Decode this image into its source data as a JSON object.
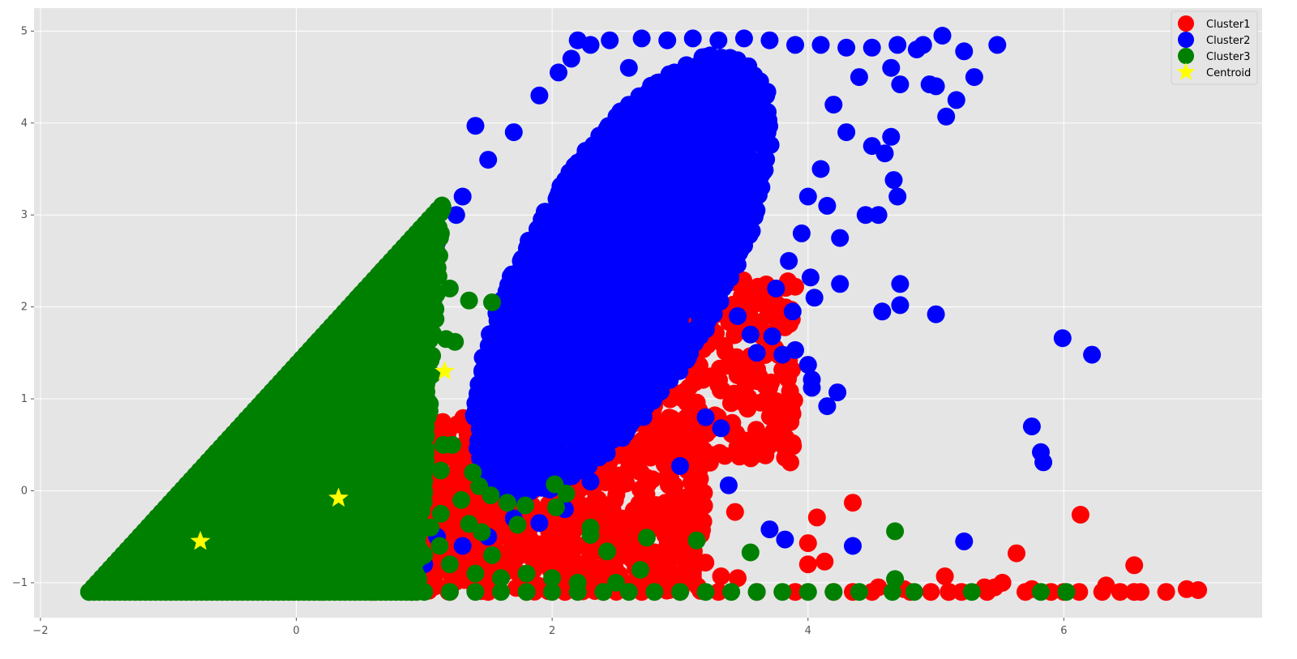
{
  "chart_data": {
    "type": "scatter",
    "grid": true,
    "legend_position": "top-right",
    "xlim": [
      -2.05,
      7.55
    ],
    "ylim": [
      -1.38,
      5.25
    ],
    "x_ticks": [
      -2,
      0,
      2,
      4,
      6
    ],
    "y_ticks": [
      -1,
      0,
      1,
      2,
      3,
      4,
      5
    ],
    "x_tick_labels": [
      "−2",
      "0",
      "2",
      "4",
      "6"
    ],
    "y_tick_labels": [
      "−1",
      "0",
      "1",
      "2",
      "3",
      "4",
      "5"
    ],
    "colors": {
      "plot_bg": "#e5e5e5",
      "grid": "#ffffff"
    },
    "series": [
      {
        "name": "Cluster1",
        "color": "#ff0000",
        "marker": "circle",
        "regions": [
          {
            "x": [
              0.6,
              3.2
            ],
            "y": [
              -1.1,
              0.8
            ],
            "count": 900
          },
          {
            "x": [
              2.2,
              3.9
            ],
            "y": [
              0.3,
              2.3
            ],
            "count": 350
          }
        ],
        "points": [
          [
            0.6,
            -1.1
          ],
          [
            0.9,
            -1.1
          ],
          [
            1.2,
            -1.1
          ],
          [
            1.5,
            -1.1
          ],
          [
            1.8,
            -1.1
          ],
          [
            2.1,
            -1.1
          ],
          [
            2.4,
            -1.1
          ],
          [
            2.7,
            -1.1
          ],
          [
            3.0,
            -1.1
          ],
          [
            3.3,
            -1.1
          ],
          [
            3.6,
            -1.1
          ],
          [
            3.9,
            -1.1
          ],
          [
            4.2,
            -1.1
          ],
          [
            4.5,
            -1.1
          ],
          [
            4.8,
            -1.1
          ],
          [
            5.1,
            -1.1
          ],
          [
            5.4,
            -1.1
          ],
          [
            5.7,
            -1.1
          ],
          [
            6.0,
            -1.1
          ],
          [
            6.3,
            -1.1
          ],
          [
            6.6,
            -1.1
          ],
          [
            6.8,
            -1.1
          ],
          [
            6.96,
            -1.07
          ],
          [
            7.05,
            -1.08
          ],
          [
            6.55,
            -1.1
          ],
          [
            6.44,
            -1.1
          ],
          [
            6.33,
            -1.03
          ],
          [
            6.12,
            -1.1
          ],
          [
            5.9,
            -1.1
          ],
          [
            5.75,
            -1.07
          ],
          [
            5.52,
            -1.0
          ],
          [
            5.46,
            -1.05
          ],
          [
            5.38,
            -1.05
          ],
          [
            5.2,
            -1.1
          ],
          [
            5.1,
            -1.1
          ],
          [
            5.07,
            -0.93
          ],
          [
            4.96,
            -1.1
          ],
          [
            4.75,
            -1.07
          ],
          [
            4.55,
            -1.05
          ],
          [
            4.35,
            -1.1
          ],
          [
            6.13,
            -0.26
          ],
          [
            5.63,
            -0.68
          ],
          [
            6.55,
            -0.81
          ],
          [
            4.35,
            -0.13
          ],
          [
            4.07,
            -0.29
          ],
          [
            3.43,
            -0.23
          ],
          [
            4.0,
            -0.57
          ],
          [
            4.13,
            -0.77
          ],
          [
            4.0,
            -0.8
          ],
          [
            3.15,
            0.23
          ],
          [
            3.35,
            0.38
          ],
          [
            3.8,
            0.5
          ],
          [
            3.82,
            0.36
          ],
          [
            3.12,
            -0.78
          ],
          [
            2.95,
            -0.57
          ],
          [
            3.05,
            -0.57
          ],
          [
            2.93,
            -0.47
          ],
          [
            2.73,
            -0.53
          ],
          [
            3.32,
            -0.93
          ],
          [
            3.45,
            -0.95
          ],
          [
            3.1,
            -0.94
          ],
          [
            2.68,
            -0.14
          ],
          [
            2.5,
            -0.43
          ],
          [
            2.3,
            -0.7
          ],
          [
            3.3,
            1.15
          ],
          [
            3.9,
            2.22
          ]
        ]
      },
      {
        "name": "Cluster2",
        "color": "#0000ff",
        "marker": "circle",
        "regions": [
          {
            "x": [
              0.8,
              4.3
            ],
            "y": [
              -0.4,
              4.9
            ],
            "count": 2400
          }
        ],
        "points": [
          [
            5.05,
            4.95
          ],
          [
            5.48,
            4.85
          ],
          [
            5.22,
            4.78
          ],
          [
            5.3,
            4.5
          ],
          [
            5.16,
            4.25
          ],
          [
            5.08,
            4.07
          ],
          [
            4.95,
            4.42
          ],
          [
            5.0,
            4.4
          ],
          [
            4.72,
            4.42
          ],
          [
            4.65,
            3.85
          ],
          [
            4.6,
            3.67
          ],
          [
            4.5,
            3.75
          ],
          [
            4.67,
            3.38
          ],
          [
            4.7,
            3.2
          ],
          [
            4.45,
            3.0
          ],
          [
            4.55,
            3.0
          ],
          [
            4.25,
            2.75
          ],
          [
            4.25,
            2.25
          ],
          [
            4.72,
            2.25
          ],
          [
            4.72,
            2.02
          ],
          [
            4.58,
            1.95
          ],
          [
            5.0,
            1.92
          ],
          [
            4.05,
            2.1
          ],
          [
            4.02,
            2.32
          ],
          [
            3.88,
            1.95
          ],
          [
            3.9,
            1.53
          ],
          [
            3.72,
            1.68
          ],
          [
            3.8,
            1.48
          ],
          [
            4.0,
            1.37
          ],
          [
            4.03,
            1.21
          ],
          [
            4.03,
            1.12
          ],
          [
            4.23,
            1.07
          ],
          [
            4.15,
            0.92
          ],
          [
            3.32,
            0.68
          ],
          [
            3.2,
            0.8
          ],
          [
            3.38,
            0.06
          ],
          [
            3.0,
            0.27
          ],
          [
            3.7,
            -0.42
          ],
          [
            3.82,
            -0.53
          ],
          [
            4.35,
            -0.6
          ],
          [
            5.22,
            -0.55
          ],
          [
            5.75,
            0.7
          ],
          [
            5.82,
            0.42
          ],
          [
            5.84,
            0.31
          ],
          [
            5.99,
            1.66
          ],
          [
            6.22,
            1.48
          ],
          [
            1.4,
            3.97
          ],
          [
            3.6,
            1.5
          ],
          [
            3.55,
            1.7
          ],
          [
            3.45,
            1.9
          ],
          [
            2.2,
            4.9
          ],
          [
            2.3,
            4.85
          ],
          [
            2.45,
            4.9
          ],
          [
            2.7,
            4.92
          ],
          [
            2.9,
            4.9
          ],
          [
            3.1,
            4.92
          ],
          [
            3.3,
            4.9
          ],
          [
            3.5,
            4.92
          ],
          [
            3.7,
            4.9
          ],
          [
            3.9,
            4.85
          ],
          [
            4.1,
            4.85
          ],
          [
            4.3,
            4.82
          ],
          [
            4.5,
            4.82
          ],
          [
            4.7,
            4.85
          ],
          [
            4.9,
            4.85
          ],
          [
            4.85,
            4.8
          ],
          [
            4.65,
            4.6
          ],
          [
            4.4,
            4.5
          ],
          [
            4.2,
            4.2
          ],
          [
            4.3,
            3.9
          ],
          [
            4.1,
            3.5
          ],
          [
            4.0,
            3.2
          ],
          [
            4.15,
            3.1
          ],
          [
            3.95,
            2.8
          ],
          [
            3.85,
            2.5
          ],
          [
            3.75,
            2.2
          ],
          [
            1.25,
            3.0
          ],
          [
            1.1,
            2.7
          ],
          [
            1.3,
            3.2
          ],
          [
            1.5,
            3.6
          ],
          [
            1.7,
            3.9
          ],
          [
            1.9,
            4.3
          ],
          [
            2.05,
            4.55
          ],
          [
            2.15,
            4.7
          ],
          [
            2.6,
            4.6
          ],
          [
            2.3,
            0.1
          ],
          [
            2.1,
            -0.2
          ],
          [
            1.9,
            -0.35
          ],
          [
            1.7,
            -0.3
          ],
          [
            1.5,
            -0.5
          ],
          [
            1.3,
            -0.6
          ],
          [
            1.1,
            -0.5
          ],
          [
            1.0,
            -0.8
          ],
          [
            0.9,
            -0.7
          ],
          [
            0.7,
            0.3
          ],
          [
            0.8,
            1.1
          ],
          [
            0.6,
            1.5
          ],
          [
            0.5,
            1.7
          ],
          [
            0.4,
            1.9
          ]
        ]
      },
      {
        "name": "Cluster3",
        "color": "#008000",
        "marker": "circle",
        "triangle": {
          "vertices": [
            [
              -1.62,
              -1.1
            ],
            [
              1.15,
              3.12
            ],
            [
              0.95,
              -1.1
            ]
          ],
          "count": 2600
        },
        "points": [
          [
            1.0,
            -1.1
          ],
          [
            1.2,
            -1.1
          ],
          [
            1.4,
            -1.1
          ],
          [
            1.6,
            -1.1
          ],
          [
            1.8,
            -1.1
          ],
          [
            2.0,
            -1.1
          ],
          [
            2.2,
            -1.1
          ],
          [
            2.4,
            -1.1
          ],
          [
            2.6,
            -1.1
          ],
          [
            2.8,
            -1.1
          ],
          [
            3.0,
            -1.1
          ],
          [
            3.2,
            -1.1
          ],
          [
            3.4,
            -1.1
          ],
          [
            3.6,
            -1.1
          ],
          [
            3.8,
            -1.1
          ],
          [
            4.0,
            -1.1
          ],
          [
            4.2,
            -1.1
          ],
          [
            4.4,
            -1.1
          ],
          [
            4.66,
            -1.1
          ],
          [
            4.83,
            -1.1
          ],
          [
            5.28,
            -1.1
          ],
          [
            5.82,
            -1.1
          ],
          [
            6.02,
            -1.1
          ],
          [
            1.35,
            2.07
          ],
          [
            1.53,
            2.05
          ],
          [
            1.17,
            1.65
          ],
          [
            1.24,
            1.62
          ],
          [
            0.94,
            1.38
          ],
          [
            1.15,
            0.5
          ],
          [
            1.22,
            0.5
          ],
          [
            1.38,
            0.2
          ],
          [
            1.43,
            0.05
          ],
          [
            1.52,
            -0.05
          ],
          [
            1.65,
            -0.13
          ],
          [
            1.73,
            -0.37
          ],
          [
            1.79,
            -0.16
          ],
          [
            2.02,
            0.07
          ],
          [
            2.11,
            -0.03
          ],
          [
            2.03,
            -0.18
          ],
          [
            2.3,
            -0.4
          ],
          [
            2.3,
            -0.48
          ],
          [
            2.43,
            -0.66
          ],
          [
            2.69,
            -0.86
          ],
          [
            2.74,
            -0.51
          ],
          [
            3.13,
            -0.54
          ],
          [
            3.55,
            -0.67
          ],
          [
            4.68,
            -0.44
          ],
          [
            4.68,
            -0.96
          ],
          [
            1.29,
            -0.1
          ],
          [
            1.13,
            -0.25
          ],
          [
            1.35,
            -0.36
          ],
          [
            1.45,
            -0.45
          ],
          [
            1.53,
            -0.7
          ],
          [
            1.13,
            0.22
          ],
          [
            1.12,
            -0.6
          ],
          [
            1.05,
            -0.4
          ],
          [
            1.0,
            0.1
          ],
          [
            0.88,
            0.83
          ],
          [
            0.92,
            0.6
          ],
          [
            0.88,
            2.0
          ],
          [
            1.0,
            2.25
          ],
          [
            1.1,
            2.15
          ],
          [
            1.2,
            2.2
          ],
          [
            0.95,
            2.5
          ],
          [
            1.05,
            2.85
          ],
          [
            0.8,
            1.6
          ],
          [
            0.72,
            1.1
          ],
          [
            0.82,
            0.4
          ],
          [
            0.85,
            0.2
          ],
          [
            0.9,
            -0.2
          ],
          [
            0.85,
            -0.5
          ],
          [
            0.95,
            -0.6
          ],
          [
            1.0,
            -0.7
          ],
          [
            1.2,
            -0.8
          ],
          [
            1.4,
            -0.9
          ],
          [
            1.6,
            -0.95
          ],
          [
            1.8,
            -0.9
          ],
          [
            2.0,
            -0.95
          ],
          [
            2.2,
            -1.0
          ],
          [
            2.5,
            -1.0
          ]
        ]
      },
      {
        "name": "Centroid",
        "color": "#ffff00",
        "marker": "star",
        "points": [
          [
            1.16,
            1.3
          ],
          [
            0.33,
            -0.08
          ],
          [
            -0.75,
            -0.55
          ]
        ]
      }
    ]
  }
}
